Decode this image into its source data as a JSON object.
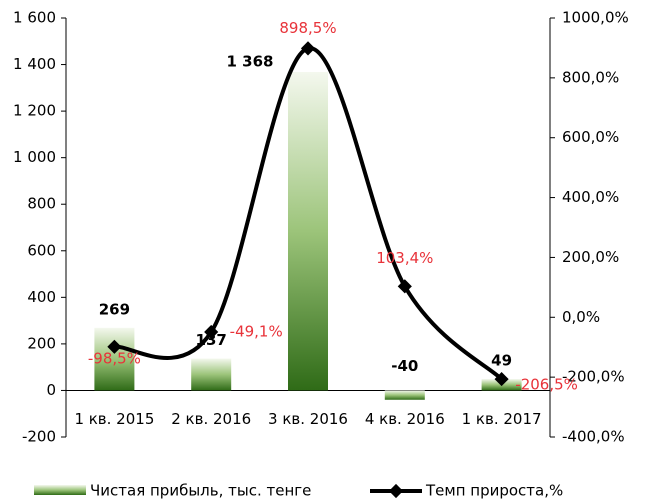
{
  "chart_data": {
    "type": "bar_line",
    "categories": [
      "1 кв. 2015",
      "2 кв. 2016",
      "3 кв. 2016",
      "4 кв. 2016",
      "1 кв. 2017"
    ],
    "series": [
      {
        "name": "Чистая прибыль, тыс. тенге",
        "type": "bar",
        "color": "#4a8a2a",
        "values": [
          269,
          137,
          1368,
          -40,
          49
        ],
        "value_labels": [
          "269",
          "137",
          "1 368",
          "-40",
          "49"
        ]
      },
      {
        "name": "Темп прироста,%",
        "type": "line",
        "axis": "y2",
        "color": "#000000",
        "values": [
          -98.5,
          -49.1,
          898.5,
          103.4,
          -206.5
        ],
        "value_labels": [
          "-98,5%",
          "-49,1%",
          "898,5%",
          "103,4%",
          "-206,5%"
        ]
      }
    ],
    "ylim": [
      -200,
      1600
    ],
    "yticks": [
      {
        "value": 1600,
        "label": "1 600"
      },
      {
        "value": 1400,
        "label": "1 400"
      },
      {
        "value": 1200,
        "label": "1 200"
      },
      {
        "value": 1000,
        "label": "1 000"
      },
      800,
      600,
      400,
      200,
      0,
      -200
    ],
    "y2lim": [
      -400,
      1000
    ],
    "y2ticks": [
      {
        "value": 1000,
        "label": "1000,0%"
      },
      {
        "value": 800,
        "label": "800,0%"
      },
      {
        "value": 600,
        "label": "600,0%"
      },
      {
        "value": 400,
        "label": "400,0%"
      },
      {
        "value": 200,
        "label": "200,0%"
      },
      {
        "value": 0,
        "label": "0,0%"
      },
      {
        "value": -200,
        "label": "-200,0%"
      },
      {
        "value": -400,
        "label": "-400,0%"
      }
    ],
    "legend": "bottom"
  }
}
